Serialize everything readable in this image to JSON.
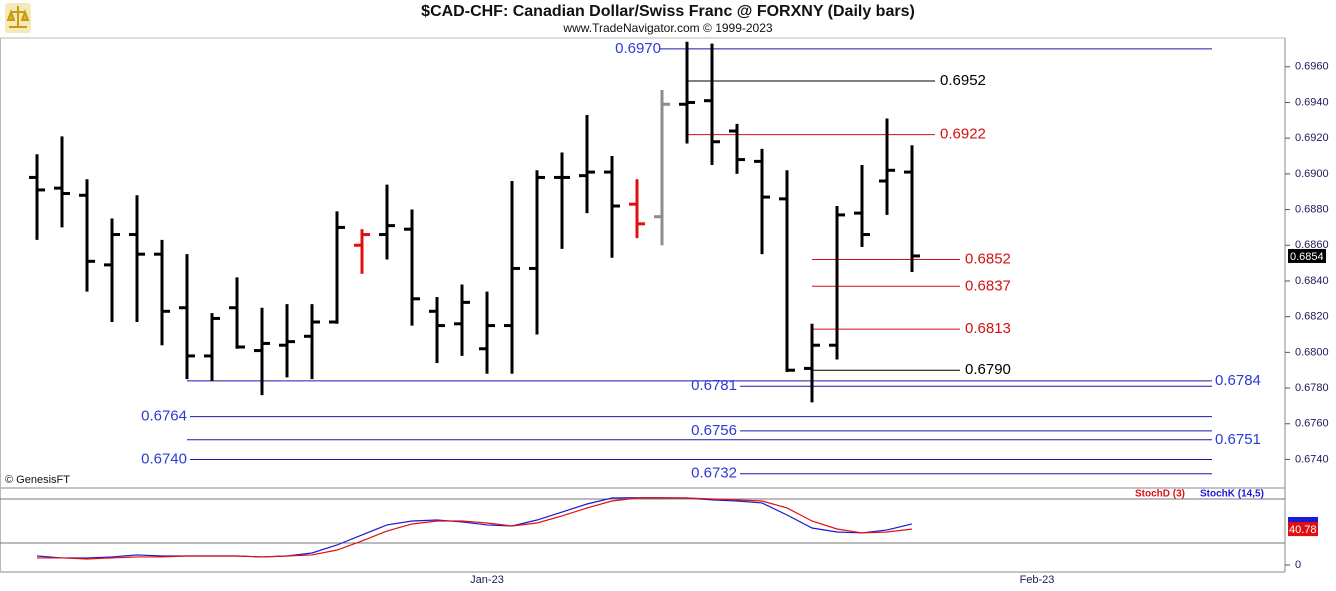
{
  "chart_data": [
    {
      "type": "ohlc",
      "title": "$CAD-CHF:  Canadian Dollar/Swiss Franc @ FORXNY  (Daily bars)",
      "subtitle": "www.TradeNavigator.com © 1999-2023",
      "source": "© GenesisFT",
      "categories": [
        null,
        null,
        null,
        null,
        null,
        null,
        null,
        null,
        null,
        null,
        null,
        null,
        null,
        null,
        null,
        null,
        null,
        null,
        "Jan-23",
        null,
        null,
        null,
        null,
        null,
        null,
        null,
        null,
        null,
        null,
        null,
        null,
        null,
        null,
        null,
        null,
        null,
        null,
        null,
        null,
        null,
        "Feb-23",
        null,
        null,
        null,
        null,
        null,
        null,
        null,
        null,
        null
      ],
      "open": [
        0.6898,
        0.6892,
        0.6888,
        0.6849,
        0.6866,
        0.6855,
        0.6825,
        0.6798,
        0.6825,
        0.6801,
        0.6804,
        0.6809,
        0.6817,
        0.686,
        0.6866,
        0.6869,
        0.6823,
        0.6816,
        0.6802,
        0.6815,
        0.6847,
        0.6898,
        0.6899,
        0.6901,
        0.6883,
        0.6876,
        0.6939,
        0.6941,
        0.6924,
        0.6907,
        0.6886,
        0.6791,
        0.6804,
        0.6878,
        0.6896,
        0.6901,
        null,
        null,
        null,
        null,
        null,
        null,
        null,
        null,
        null,
        null,
        null,
        null,
        null,
        null
      ],
      "high": [
        0.6911,
        0.6921,
        0.6897,
        0.6875,
        0.6888,
        0.6863,
        0.6855,
        0.6822,
        0.6842,
        0.6825,
        0.6827,
        0.6827,
        0.6879,
        0.6869,
        0.6894,
        0.688,
        0.6831,
        0.6838,
        0.6834,
        0.6896,
        0.6902,
        0.6912,
        0.6933,
        0.691,
        0.6897,
        0.6947,
        0.6974,
        0.6973,
        0.6928,
        0.6914,
        0.6902,
        0.6816,
        0.6882,
        0.6905,
        0.6931,
        0.6916,
        null,
        null,
        null,
        null,
        null,
        null,
        null,
        null,
        null,
        null,
        null,
        null,
        null,
        null
      ],
      "low": [
        0.6863,
        0.687,
        0.6834,
        0.6817,
        0.6817,
        0.6804,
        0.6785,
        0.6784,
        0.6802,
        0.6776,
        0.6786,
        0.6785,
        0.6816,
        0.6844,
        0.6852,
        0.6815,
        0.6794,
        0.6798,
        0.6788,
        0.6788,
        0.681,
        0.6858,
        0.6878,
        0.6853,
        0.6864,
        0.686,
        0.6917,
        0.6905,
        0.69,
        0.6855,
        0.6789,
        0.6772,
        0.6796,
        0.6859,
        0.6877,
        0.6845,
        null,
        null,
        null,
        null,
        null,
        null,
        null,
        null,
        null,
        null,
        null,
        null,
        null,
        null
      ],
      "close": [
        0.6891,
        0.6889,
        0.6851,
        0.6866,
        0.6855,
        0.6823,
        0.6798,
        0.6819,
        0.6803,
        0.6805,
        0.6806,
        0.6817,
        0.687,
        0.6866,
        0.6871,
        0.683,
        0.6815,
        0.6828,
        0.6815,
        0.6847,
        0.6898,
        0.6898,
        0.6901,
        0.6882,
        0.6872,
        0.6939,
        0.694,
        0.6918,
        0.6908,
        0.6887,
        0.679,
        0.6804,
        0.6877,
        0.6866,
        0.6902,
        0.6854,
        null,
        null,
        null,
        null,
        null,
        null,
        null,
        null,
        null,
        null,
        null,
        null,
        null,
        null
      ],
      "bar_colors": [
        "#000000",
        "#000000",
        "#000000",
        "#000000",
        "#000000",
        "#000000",
        "#000000",
        "#000000",
        "#000000",
        "#000000",
        "#000000",
        "#000000",
        "#000000",
        "#e01010",
        "#000000",
        "#000000",
        "#000000",
        "#000000",
        "#000000",
        "#000000",
        "#000000",
        "#000000",
        "#000000",
        "#000000",
        "#e01010",
        "#8c8c8c",
        "#000000",
        "#000000",
        "#000000",
        "#000000",
        "#000000",
        "#000000",
        "#000000",
        "#000000",
        "#000000",
        "#000000"
      ],
      "ylim": [
        0.6724,
        0.6975
      ],
      "yticks": [
        {
          "value": 0.674,
          "label": "0.6740"
        },
        {
          "value": 0.676,
          "label": "0.6760"
        },
        {
          "value": 0.678,
          "label": "0.6780"
        },
        {
          "value": 0.68,
          "label": "0.6800"
        },
        {
          "value": 0.682,
          "label": "0.6820"
        },
        {
          "value": 0.684,
          "label": "0.6840"
        },
        {
          "value": 0.686,
          "label": "0.6860"
        },
        {
          "value": 0.688,
          "label": "0.6880"
        },
        {
          "value": 0.69,
          "label": "0.6900"
        },
        {
          "value": 0.692,
          "label": "0.6920"
        },
        {
          "value": 0.694,
          "label": "0.6940"
        },
        {
          "value": 0.696,
          "label": "0.6960"
        }
      ],
      "levels": [
        {
          "value": 0.697,
          "label": "0.6970",
          "color": "#1a1aa6"
        },
        {
          "value": 0.6952,
          "label": "0.6952",
          "color": "#000000"
        },
        {
          "value": 0.6922,
          "label": "0.6922",
          "color": "#d41010"
        },
        {
          "value": 0.6852,
          "label": "0.6852",
          "color": "#d41010"
        },
        {
          "value": 0.6837,
          "label": "0.6837",
          "color": "#d41010"
        },
        {
          "value": 0.6813,
          "label": "0.6813",
          "color": "#d41010"
        },
        {
          "value": 0.679,
          "label": "0.6790",
          "color": "#000000"
        },
        {
          "value": 0.6784,
          "label": "0.6784",
          "color": "#1a1aa6"
        },
        {
          "value": 0.6781,
          "label": "0.6781",
          "color": "#1a1aa6"
        },
        {
          "value": 0.6764,
          "label": "0.6764",
          "color": "#1a1aa6"
        },
        {
          "value": 0.6756,
          "label": "0.6756",
          "color": "#1a1aa6"
        },
        {
          "value": 0.6751,
          "label": "0.6751",
          "color": "#1a1aa6"
        },
        {
          "value": 0.674,
          "label": "0.6740",
          "color": "#1a1aa6"
        },
        {
          "value": 0.6732,
          "label": "0.6732",
          "color": "#1a1aa6"
        }
      ]
    },
    {
      "type": "line",
      "series": [
        {
          "name": "StochD (3)",
          "color": "#e01010",
          "values": [
            8.0,
            8.0,
            6.8,
            8.0,
            9.1,
            9.1,
            10.2,
            10.2,
            10.2,
            9.1,
            10.2,
            11.4,
            17.0,
            27.3,
            38.6,
            46.6,
            50.0,
            50.0,
            47.7,
            44.3,
            47.7,
            55.7,
            64.8,
            72.7,
            76.1,
            76.1,
            76.1,
            75.0,
            73.9,
            72.7,
            64.8,
            50.0,
            40.9,
            36.4,
            37.5,
            40.78,
            null,
            null,
            null,
            null,
            null,
            null,
            null,
            null,
            null,
            null,
            null,
            null,
            null,
            null
          ]
        },
        {
          "name": "StochK (14,5)",
          "color": "#1a1ad0",
          "values": [
            10.2,
            8.0,
            8.0,
            9.1,
            11.4,
            10.2,
            10.2,
            10.2,
            10.2,
            9.1,
            10.2,
            13.6,
            22.7,
            34.1,
            45.5,
            50.0,
            51.1,
            48.9,
            45.5,
            44.3,
            51.1,
            60.2,
            69.3,
            76.1,
            76.5,
            76.5,
            76.1,
            73.9,
            72.7,
            70.5,
            56.8,
            42.0,
            37.5,
            36.4,
            39.8,
            46.6,
            null,
            null,
            null,
            null,
            null,
            null,
            null,
            null,
            null,
            null,
            null,
            null,
            null,
            null
          ]
        }
      ],
      "ylim": [
        -8,
        87.5
      ],
      "yticks": [
        0
      ],
      "hlines": [
        25,
        75
      ]
    }
  ]
}
